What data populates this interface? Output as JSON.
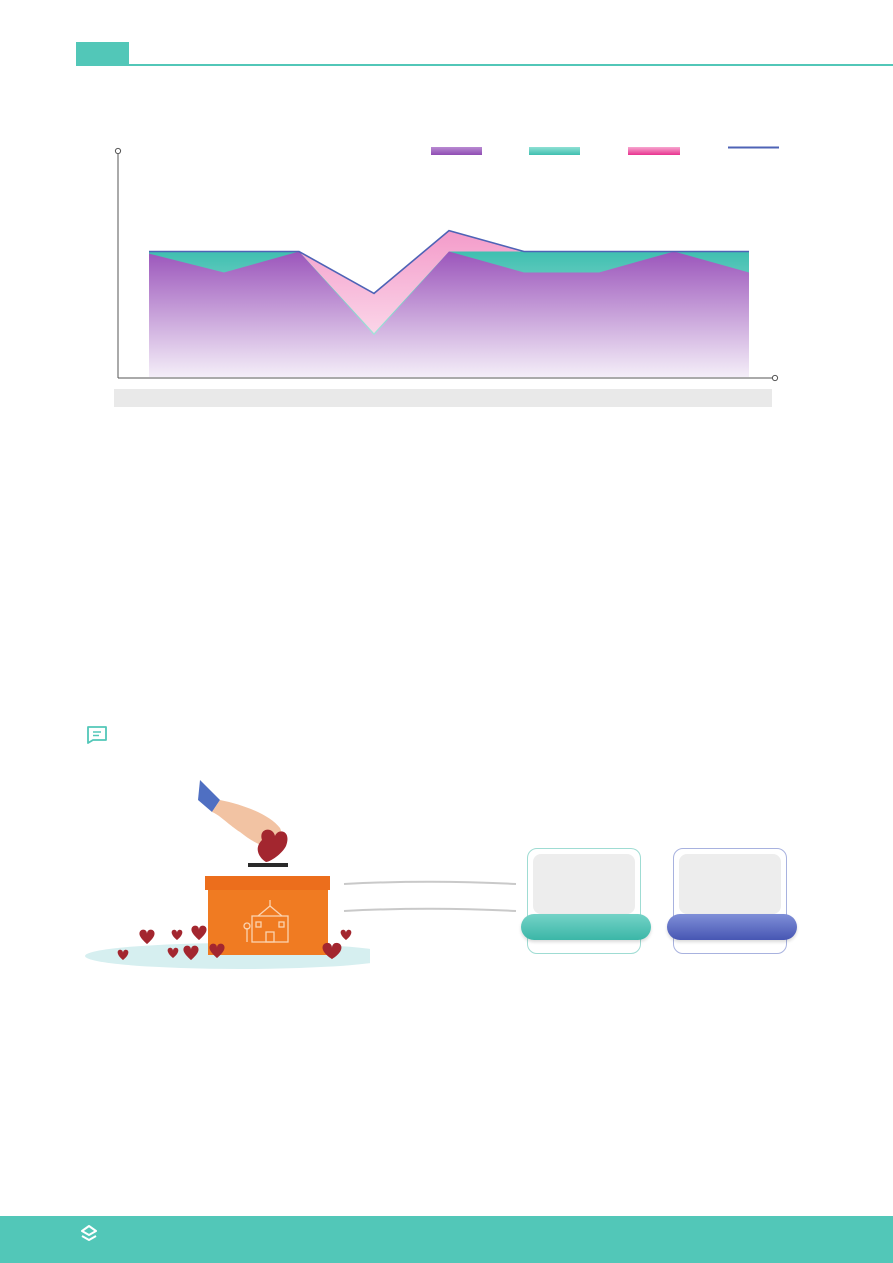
{
  "colors": {
    "accent": "#52c7b8",
    "purple": "#a264c0",
    "pink": "#f088c0",
    "navy": "#4e63b6",
    "orange": "#f07b22"
  },
  "chart_data": {
    "type": "area",
    "title": "",
    "xlabel": "",
    "ylabel": "",
    "categories": [
      "",
      "",
      "",
      "",
      "",
      "",
      "",
      "",
      ""
    ],
    "series": [
      {
        "key": "purple-area",
        "values": [
          5.9,
          5.0,
          6.0,
          2.0,
          6.0,
          5.0,
          5.0,
          6.0,
          5.0
        ]
      },
      {
        "key": "teal-area",
        "values": [
          6.0,
          6.0,
          6.0,
          2.1,
          6.0,
          6.0,
          6.0,
          6.0,
          6.0
        ]
      },
      {
        "key": "pink-area",
        "values": [
          6.0,
          6.0,
          6.0,
          4.0,
          7.0,
          6.0,
          6.0,
          6.0,
          6.0
        ]
      },
      {
        "key": "line",
        "values": [
          6.0,
          6.0,
          6.0,
          4.0,
          7.0,
          6.0,
          6.0,
          6.0,
          6.0
        ]
      }
    ],
    "ylim": [
      0,
      11
    ],
    "grid": false,
    "legend": "top-right"
  },
  "icons": {
    "note": "note-icon",
    "footer_logo": "brand-logo-icon",
    "illustration": "ballot-box-hearts-illustration"
  }
}
